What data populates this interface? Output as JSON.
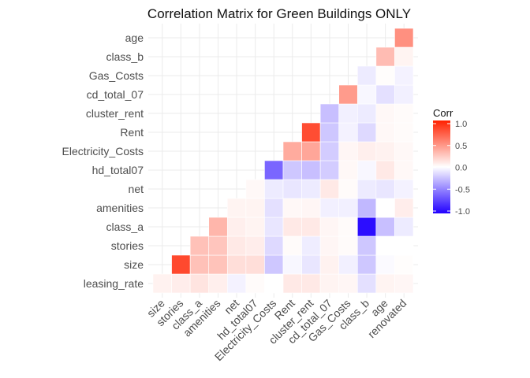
{
  "chart_data": {
    "type": "heatmap",
    "title": "Correlation Matrix for Green Buildings ONLY",
    "xlabel": "",
    "ylabel": "",
    "variables": [
      "leasing_rate",
      "size",
      "stories",
      "class_a",
      "amenities",
      "net",
      "hd_total07",
      "Electricity_Costs",
      "Rent",
      "cluster_rent",
      "cd_total_07",
      "Gas_Costs",
      "class_b",
      "age",
      "renovated"
    ],
    "x_categories": [
      "size",
      "stories",
      "class_a",
      "amenities",
      "net",
      "hd_total07",
      "Electricity_Costs",
      "Rent",
      "cluster_rent",
      "cd_total_07",
      "Gas_Costs",
      "class_b",
      "age",
      "renovated"
    ],
    "y_categories": [
      "leasing_rate",
      "size",
      "stories",
      "class_a",
      "amenities",
      "net",
      "hd_total07",
      "Electricity_Costs",
      "Rent",
      "cluster_rent",
      "cd_total_07",
      "Gas_Costs",
      "class_b",
      "age"
    ],
    "cells": [
      [
        "leasing_rate",
        "size",
        0.06
      ],
      [
        "leasing_rate",
        "stories",
        0.08
      ],
      [
        "leasing_rate",
        "class_a",
        0.12
      ],
      [
        "leasing_rate",
        "amenities",
        0.07
      ],
      [
        "leasing_rate",
        "net",
        -0.05
      ],
      [
        "leasing_rate",
        "hd_total07",
        0.02
      ],
      [
        "leasing_rate",
        "Electricity_Costs",
        0.0
      ],
      [
        "leasing_rate",
        "Rent",
        0.1
      ],
      [
        "leasing_rate",
        "cluster_rent",
        0.1
      ],
      [
        "leasing_rate",
        "cd_total_07",
        0.05
      ],
      [
        "leasing_rate",
        "Gas_Costs",
        0.04
      ],
      [
        "leasing_rate",
        "class_b",
        -0.12
      ],
      [
        "leasing_rate",
        "age",
        0.05
      ],
      [
        "leasing_rate",
        "renovated",
        0.04
      ],
      [
        "size",
        "stories",
        0.82
      ],
      [
        "size",
        "class_a",
        0.28
      ],
      [
        "size",
        "amenities",
        0.27
      ],
      [
        "size",
        "net",
        0.15
      ],
      [
        "size",
        "hd_total07",
        0.15
      ],
      [
        "size",
        "Electricity_Costs",
        -0.22
      ],
      [
        "size",
        "Rent",
        -0.03
      ],
      [
        "size",
        "cluster_rent",
        -0.1
      ],
      [
        "size",
        "cd_total_07",
        0.06
      ],
      [
        "size",
        "Gas_Costs",
        -0.06
      ],
      [
        "size",
        "class_b",
        -0.22
      ],
      [
        "size",
        "age",
        -0.02
      ],
      [
        "size",
        "renovated",
        0.01
      ],
      [
        "stories",
        "class_a",
        0.28
      ],
      [
        "stories",
        "amenities",
        0.26
      ],
      [
        "stories",
        "net",
        0.1
      ],
      [
        "stories",
        "hd_total07",
        0.08
      ],
      [
        "stories",
        "Electricity_Costs",
        -0.15
      ],
      [
        "stories",
        "Rent",
        0.02
      ],
      [
        "stories",
        "cluster_rent",
        -0.07
      ],
      [
        "stories",
        "cd_total_07",
        0.04
      ],
      [
        "stories",
        "Gas_Costs",
        0.02
      ],
      [
        "stories",
        "class_b",
        -0.22
      ],
      [
        "stories",
        "age",
        0.0
      ],
      [
        "stories",
        "renovated",
        0.0
      ],
      [
        "class_a",
        "amenities",
        0.33
      ],
      [
        "class_a",
        "net",
        0.07
      ],
      [
        "class_a",
        "hd_total07",
        0.05
      ],
      [
        "class_a",
        "Electricity_Costs",
        -0.1
      ],
      [
        "class_a",
        "Rent",
        0.1
      ],
      [
        "class_a",
        "cluster_rent",
        0.1
      ],
      [
        "class_a",
        "cd_total_07",
        0.04
      ],
      [
        "class_a",
        "Gas_Costs",
        0.02
      ],
      [
        "class_a",
        "class_b",
        -0.95
      ],
      [
        "class_a",
        "age",
        -0.25
      ],
      [
        "class_a",
        "renovated",
        -0.08
      ],
      [
        "amenities",
        "net",
        0.05
      ],
      [
        "amenities",
        "hd_total07",
        0.05
      ],
      [
        "amenities",
        "Electricity_Costs",
        -0.12
      ],
      [
        "amenities",
        "Rent",
        0.03
      ],
      [
        "amenities",
        "cluster_rent",
        0.04
      ],
      [
        "amenities",
        "cd_total_07",
        -0.06
      ],
      [
        "amenities",
        "Gas_Costs",
        -0.06
      ],
      [
        "amenities",
        "class_b",
        -0.28
      ],
      [
        "amenities",
        "age",
        0.0
      ],
      [
        "amenities",
        "renovated",
        0.08
      ],
      [
        "net",
        "hd_total07",
        0.03
      ],
      [
        "net",
        "Electricity_Costs",
        -0.08
      ],
      [
        "net",
        "Rent",
        -0.1
      ],
      [
        "net",
        "cluster_rent",
        -0.08
      ],
      [
        "net",
        "cd_total_07",
        0.1
      ],
      [
        "net",
        "Gas_Costs",
        0.02
      ],
      [
        "net",
        "class_b",
        -0.08
      ],
      [
        "net",
        "age",
        -0.1
      ],
      [
        "net",
        "renovated",
        -0.05
      ],
      [
        "hd_total07",
        "Electricity_Costs",
        -0.6
      ],
      [
        "hd_total07",
        "Rent",
        -0.22
      ],
      [
        "hd_total07",
        "cluster_rent",
        -0.25
      ],
      [
        "hd_total07",
        "cd_total_07",
        -0.2
      ],
      [
        "hd_total07",
        "Gas_Costs",
        0.03
      ],
      [
        "hd_total07",
        "class_b",
        -0.03
      ],
      [
        "hd_total07",
        "age",
        0.1
      ],
      [
        "hd_total07",
        "renovated",
        0.03
      ],
      [
        "Electricity_Costs",
        "Rent",
        0.38
      ],
      [
        "Electricity_Costs",
        "cluster_rent",
        0.4
      ],
      [
        "Electricity_Costs",
        "cd_total_07",
        -0.2
      ],
      [
        "Electricity_Costs",
        "Gas_Costs",
        0.04
      ],
      [
        "Electricity_Costs",
        "class_b",
        0.07
      ],
      [
        "Electricity_Costs",
        "age",
        0.06
      ],
      [
        "Electricity_Costs",
        "renovated",
        0.03
      ],
      [
        "Rent",
        "cluster_rent",
        0.8
      ],
      [
        "Rent",
        "cd_total_07",
        -0.22
      ],
      [
        "Rent",
        "Gas_Costs",
        -0.05
      ],
      [
        "Rent",
        "class_b",
        -0.15
      ],
      [
        "Rent",
        "age",
        0.03
      ],
      [
        "Rent",
        "renovated",
        0.02
      ],
      [
        "cluster_rent",
        "cd_total_07",
        -0.25
      ],
      [
        "cluster_rent",
        "Gas_Costs",
        -0.06
      ],
      [
        "cluster_rent",
        "class_b",
        -0.08
      ],
      [
        "cluster_rent",
        "age",
        0.03
      ],
      [
        "cluster_rent",
        "renovated",
        0.02
      ],
      [
        "cd_total_07",
        "Gas_Costs",
        0.45
      ],
      [
        "cd_total_07",
        "class_b",
        -0.03
      ],
      [
        "cd_total_07",
        "age",
        -0.12
      ],
      [
        "cd_total_07",
        "renovated",
        -0.06
      ],
      [
        "Gas_Costs",
        "class_b",
        -0.08
      ],
      [
        "Gas_Costs",
        "age",
        0.01
      ],
      [
        "Gas_Costs",
        "renovated",
        -0.05
      ],
      [
        "class_b",
        "age",
        0.3
      ],
      [
        "class_b",
        "renovated",
        0.05
      ],
      [
        "age",
        "renovated",
        0.5
      ]
    ],
    "legend": {
      "title": "Corr",
      "ticks": [
        1.0,
        0.5,
        0.0,
        -0.5,
        -1.0
      ],
      "tick_labels": [
        "1.0",
        "0.5",
        "0.0",
        "-0.5",
        "-1.0"
      ],
      "position": "right",
      "low_color": "#2100ff",
      "mid_color": "#ffffff",
      "high_color": "#ff2100"
    },
    "grid": true,
    "value_range": [
      -1,
      1
    ]
  }
}
